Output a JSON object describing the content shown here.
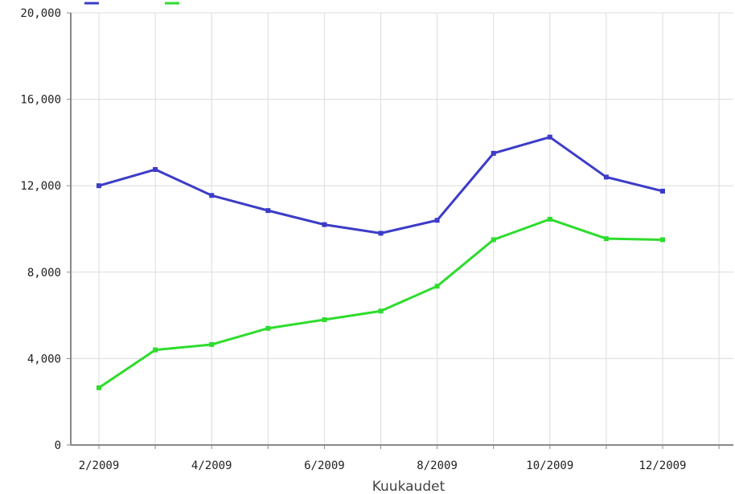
{
  "chart_data": {
    "type": "line",
    "title": "",
    "xlabel": "Kuukaudet",
    "ylabel": "",
    "x_tick_labels": [
      "2/2009",
      "4/2009",
      "6/2009",
      "8/2009",
      "10/2009",
      "12/2009"
    ],
    "categories": [
      "2/2009",
      "3/2009",
      "4/2009",
      "5/2009",
      "6/2009",
      "7/2009",
      "8/2009",
      "9/2009",
      "10/2009",
      "11/2009",
      "12/2009"
    ],
    "y_tick_labels": [
      "0",
      "4,000",
      "8,000",
      "12,000",
      "16,000",
      "20,000"
    ],
    "ylim": [
      0,
      20000
    ],
    "grid": true,
    "legend_position": "top",
    "series": [
      {
        "color": "#3c3cc8",
        "values": [
          12000,
          12750,
          11550,
          10850,
          10200,
          9800,
          10400,
          13500,
          14250,
          12400,
          11750
        ]
      },
      {
        "color": "#2edc2e",
        "values": [
          2650,
          4400,
          4650,
          5400,
          5800,
          6200,
          7350,
          9500,
          10450,
          9550,
          9500
        ]
      }
    ]
  }
}
